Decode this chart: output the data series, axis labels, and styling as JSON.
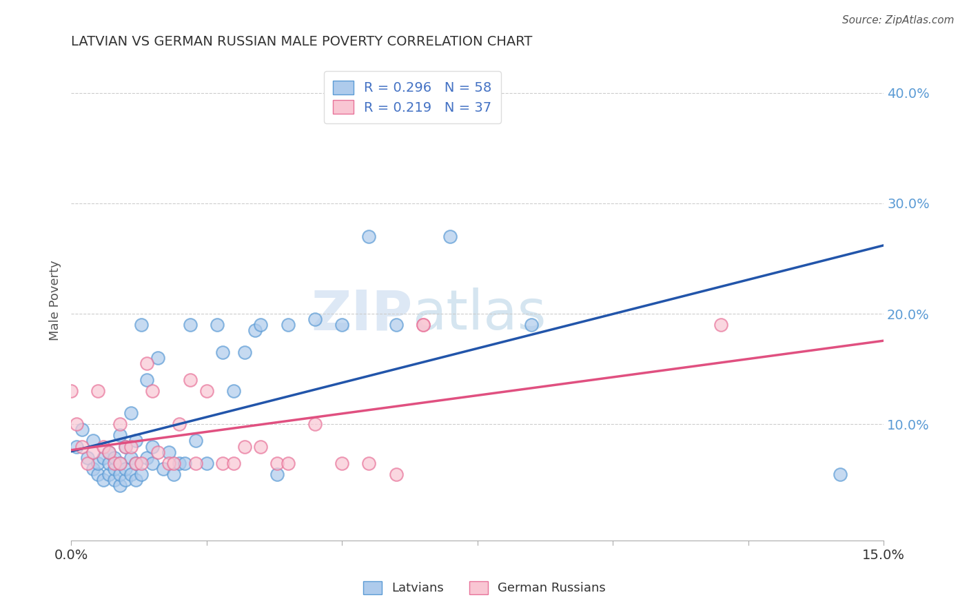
{
  "title": "LATVIAN VS GERMAN RUSSIAN MALE POVERTY CORRELATION CHART",
  "source_text": "Source: ZipAtlas.com",
  "ylabel": "Male Poverty",
  "xlim": [
    0.0,
    0.15
  ],
  "ylim": [
    -0.005,
    0.43
  ],
  "y_ticks": [
    0.1,
    0.2,
    0.3,
    0.4
  ],
  "y_tick_labels": [
    "10.0%",
    "20.0%",
    "30.0%",
    "40.0%"
  ],
  "x_ticks": [
    0.0,
    0.025,
    0.05,
    0.075,
    0.1,
    0.125,
    0.15
  ],
  "latvian_face_color": "#aecbec",
  "latvian_edge_color": "#5b9bd5",
  "german_russian_face_color": "#f9c6d3",
  "german_russian_edge_color": "#e87299",
  "latvian_line_color": "#2255aa",
  "german_russian_line_color": "#e05080",
  "legend_latvian_R": "0.296",
  "legend_latvian_N": "58",
  "legend_german_russian_R": "0.219",
  "legend_german_russian_N": "37",
  "latvians_x": [
    0.001,
    0.002,
    0.003,
    0.004,
    0.004,
    0.005,
    0.005,
    0.006,
    0.006,
    0.007,
    0.007,
    0.007,
    0.008,
    0.008,
    0.008,
    0.009,
    0.009,
    0.009,
    0.009,
    0.01,
    0.01,
    0.01,
    0.011,
    0.011,
    0.011,
    0.012,
    0.012,
    0.012,
    0.013,
    0.013,
    0.014,
    0.014,
    0.015,
    0.015,
    0.016,
    0.017,
    0.018,
    0.019,
    0.02,
    0.021,
    0.022,
    0.023,
    0.025,
    0.027,
    0.028,
    0.03,
    0.032,
    0.034,
    0.035,
    0.038,
    0.04,
    0.045,
    0.05,
    0.055,
    0.06,
    0.07,
    0.085,
    0.142
  ],
  "latvians_y": [
    0.08,
    0.095,
    0.07,
    0.06,
    0.085,
    0.055,
    0.065,
    0.05,
    0.07,
    0.055,
    0.065,
    0.075,
    0.05,
    0.06,
    0.07,
    0.045,
    0.055,
    0.065,
    0.09,
    0.05,
    0.06,
    0.08,
    0.055,
    0.07,
    0.11,
    0.05,
    0.065,
    0.085,
    0.055,
    0.19,
    0.07,
    0.14,
    0.065,
    0.08,
    0.16,
    0.06,
    0.075,
    0.055,
    0.065,
    0.065,
    0.19,
    0.085,
    0.065,
    0.19,
    0.165,
    0.13,
    0.165,
    0.185,
    0.19,
    0.055,
    0.19,
    0.195,
    0.19,
    0.27,
    0.19,
    0.27,
    0.19,
    0.055
  ],
  "german_russians_x": [
    0.0,
    0.001,
    0.002,
    0.003,
    0.004,
    0.005,
    0.006,
    0.007,
    0.008,
    0.009,
    0.009,
    0.01,
    0.011,
    0.012,
    0.013,
    0.014,
    0.015,
    0.016,
    0.018,
    0.019,
    0.02,
    0.022,
    0.023,
    0.025,
    0.028,
    0.03,
    0.032,
    0.035,
    0.038,
    0.04,
    0.045,
    0.05,
    0.055,
    0.06,
    0.065,
    0.065,
    0.12
  ],
  "german_russians_y": [
    0.13,
    0.1,
    0.08,
    0.065,
    0.075,
    0.13,
    0.08,
    0.075,
    0.065,
    0.065,
    0.1,
    0.08,
    0.08,
    0.065,
    0.065,
    0.155,
    0.13,
    0.075,
    0.065,
    0.065,
    0.1,
    0.14,
    0.065,
    0.13,
    0.065,
    0.065,
    0.08,
    0.08,
    0.065,
    0.065,
    0.1,
    0.065,
    0.065,
    0.055,
    0.19,
    0.19,
    0.19
  ],
  "watermark_zip": "ZIP",
  "watermark_atlas": "atlas",
  "background_color": "#ffffff",
  "grid_color": "#cccccc"
}
